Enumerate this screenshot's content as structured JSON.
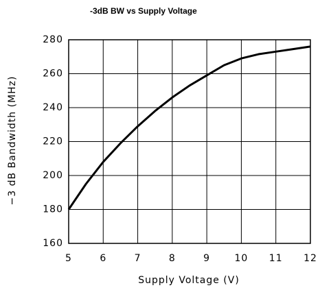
{
  "chart_data": {
    "type": "line",
    "title": "-3dB BW vs Supply Voltage",
    "x_label": "Supply Voltage (V)",
    "y_label": "−3 dB Bandwidth (MHz)",
    "x": [
      5,
      5.5,
      6,
      6.5,
      7,
      7.5,
      8,
      8.5,
      9,
      9.5,
      10,
      10.5,
      11,
      11.5,
      12
    ],
    "series": [
      {
        "name": "BW",
        "color": "#000000",
        "values": [
          180,
          195,
          208,
          219,
          229,
          238,
          246,
          253,
          259,
          265,
          269,
          271.5,
          273,
          274.5,
          276
        ]
      }
    ],
    "xlim": [
      5,
      12
    ],
    "xticks": [
      5,
      6,
      7,
      8,
      9,
      10,
      11,
      12
    ],
    "ylim": [
      160,
      280
    ],
    "yticks": [
      160,
      180,
      200,
      220,
      240,
      260,
      280
    ],
    "grid": true
  }
}
